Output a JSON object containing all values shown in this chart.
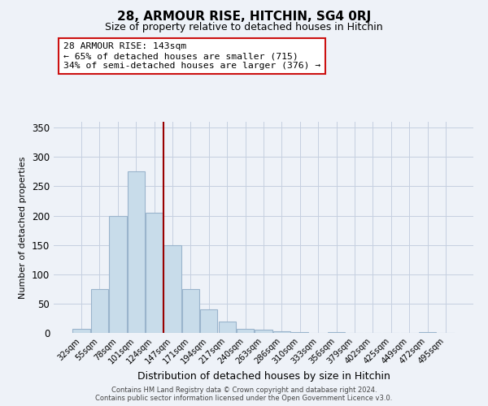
{
  "title": "28, ARMOUR RISE, HITCHIN, SG4 0RJ",
  "subtitle": "Size of property relative to detached houses in Hitchin",
  "xlabel": "Distribution of detached houses by size in Hitchin",
  "ylabel": "Number of detached properties",
  "bar_color": "#c8dcea",
  "bar_edge_color": "#9ab4cc",
  "vline_color": "#990000",
  "categories": [
    "32sqm",
    "55sqm",
    "78sqm",
    "101sqm",
    "124sqm",
    "147sqm",
    "171sqm",
    "194sqm",
    "217sqm",
    "240sqm",
    "263sqm",
    "286sqm",
    "310sqm",
    "333sqm",
    "356sqm",
    "379sqm",
    "402sqm",
    "425sqm",
    "449sqm",
    "472sqm",
    "495sqm"
  ],
  "bar_heights": [
    7,
    75,
    200,
    275,
    205,
    150,
    75,
    40,
    20,
    7,
    5,
    3,
    2,
    0,
    1,
    0,
    0,
    0,
    0,
    2,
    0
  ],
  "vline_index": 5,
  "ylim": [
    0,
    360
  ],
  "yticks": [
    0,
    50,
    100,
    150,
    200,
    250,
    300,
    350
  ],
  "annotation_line1": "28 ARMOUR RISE: 143sqm",
  "annotation_line2": "← 65% of detached houses are smaller (715)",
  "annotation_line3": "34% of semi-detached houses are larger (376) →",
  "footer1": "Contains HM Land Registry data © Crown copyright and database right 2024.",
  "footer2": "Contains public sector information licensed under the Open Government Licence v3.0.",
  "background_color": "#eef2f8",
  "plot_bg_color": "#eef2f8",
  "grid_color": "#c5cfe0"
}
